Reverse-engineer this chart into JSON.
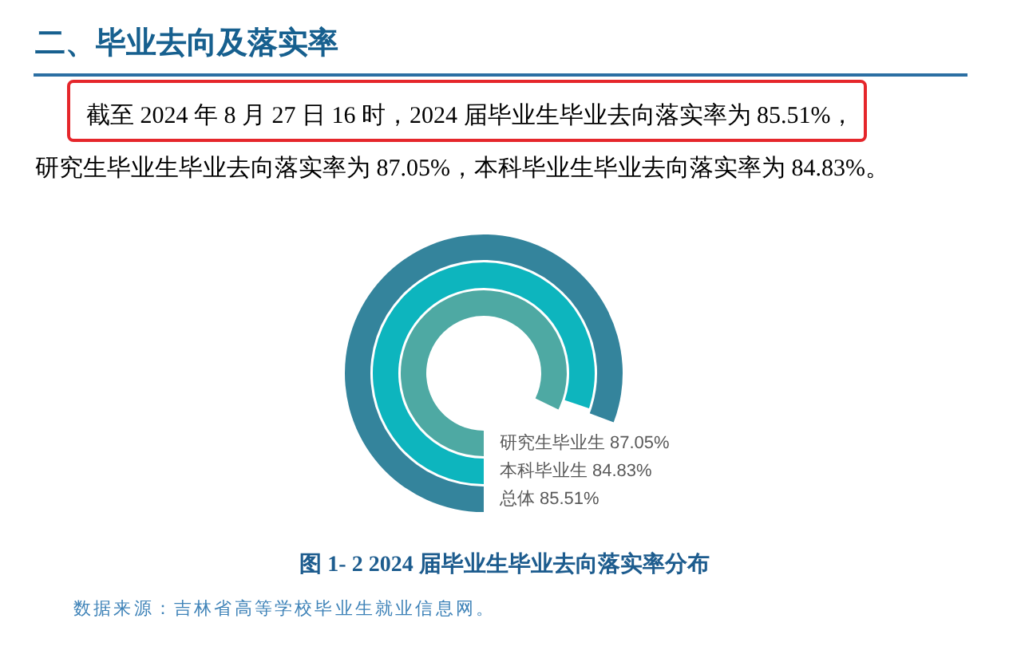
{
  "chart_data": {
    "type": "other",
    "title": "图 1- 2 2024 届毕业生毕业去向落实率分布",
    "categories": [
      "研究生毕业生",
      "本科毕业生",
      "总体"
    ],
    "values": [
      87.05,
      84.83,
      85.51
    ],
    "value_labels": [
      "87.05%",
      "84.83%",
      "85.51%"
    ],
    "colors": [
      "#4ea9a3",
      "#0db5be",
      "#34849c"
    ],
    "annotations": [
      "二、毕业去向及落实率",
      "截至 2024 年 8 月 27 日 16 时，2024 届毕业生毕业去向落实率为 85.51%，",
      "研究生毕业生毕业去向落实率为 87.05%，本科毕业生毕业去向落实率为 84.83%。",
      "数据来源：吉林省高等学校毕业生就业信息网。"
    ]
  }
}
